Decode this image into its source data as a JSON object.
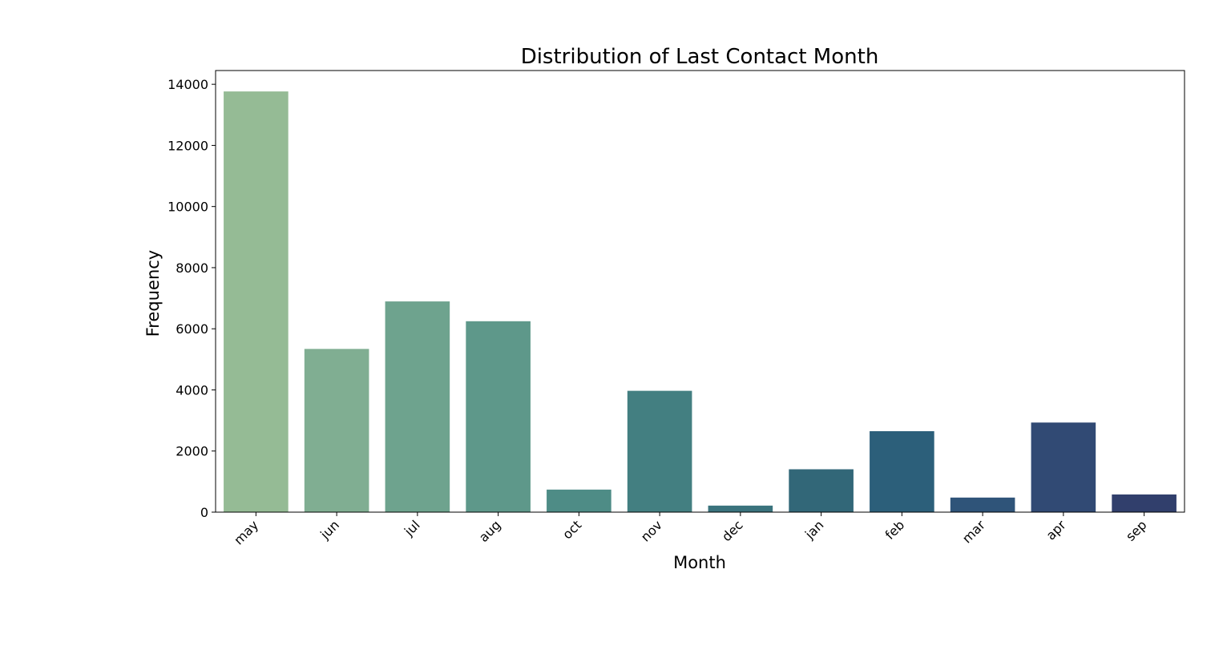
{
  "chart_data": {
    "type": "bar",
    "title": "Distribution of Last Contact Month",
    "xlabel": "Month",
    "ylabel": "Frequency",
    "categories": [
      "may",
      "jun",
      "jul",
      "aug",
      "oct",
      "nov",
      "dec",
      "jan",
      "feb",
      "mar",
      "apr",
      "sep"
    ],
    "values": [
      13766,
      5341,
      6895,
      6247,
      738,
      3970,
      214,
      1403,
      2649,
      477,
      2932,
      579
    ],
    "ylim": [
      0,
      14450
    ],
    "yticks": [
      0,
      2000,
      4000,
      6000,
      8000,
      10000,
      12000,
      14000
    ],
    "ytick_labels": [
      "0",
      "2000",
      "4000",
      "6000",
      "8000",
      "10000",
      "12000",
      "14000"
    ],
    "colors": [
      "#95bb95",
      "#80ae92",
      "#6ea38e",
      "#5e988a",
      "#4e8c86",
      "#437f81",
      "#3a737d",
      "#326778",
      "#2c5f7a",
      "#2f5479",
      "#314a74",
      "#313f6c"
    ],
    "grid": false,
    "legend": "none"
  }
}
